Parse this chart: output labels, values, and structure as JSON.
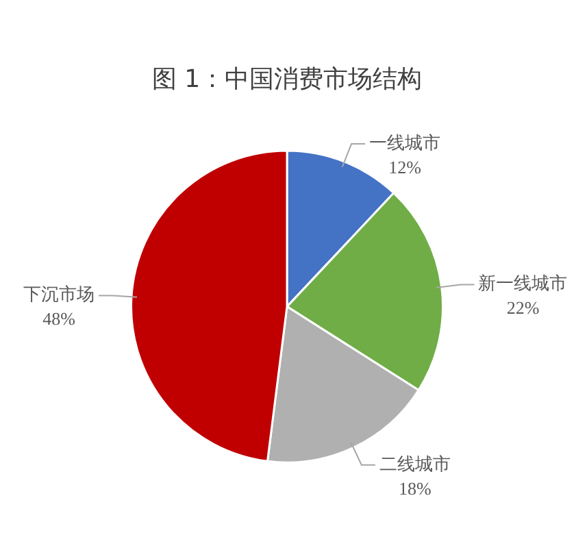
{
  "chart_data": {
    "type": "pie",
    "title": "图 1：中国消费市场结构",
    "categories": [
      "一线城市",
      "新一线城市",
      "二线城市",
      "下沉市场"
    ],
    "values": [
      12,
      22,
      18,
      48
    ],
    "colors": [
      "#4472c4",
      "#70ad47",
      "#b0b0b0",
      "#c00000"
    ],
    "value_labels": [
      "12%",
      "22%",
      "18%",
      "48%"
    ],
    "legend": false
  }
}
